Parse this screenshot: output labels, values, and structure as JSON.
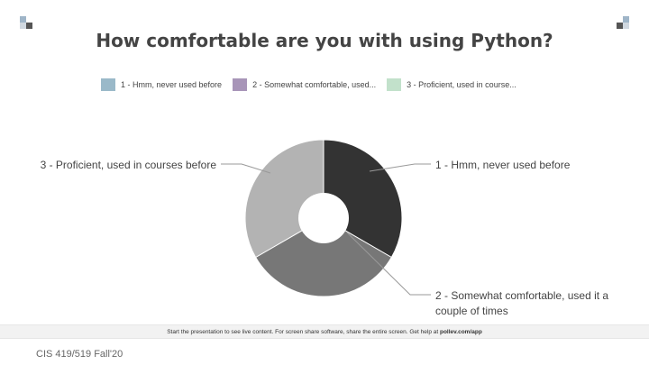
{
  "slide": {
    "title": "How comfortable are you with using Python?",
    "footer": "CIS 419/519 Fall'20"
  },
  "legend": [
    {
      "label": "1 - Hmm, never used before",
      "color": "#9ab9c9"
    },
    {
      "label": "2 - Somewhat comfortable, used...",
      "color": "#a895b8"
    },
    {
      "label": "3 - Proficient, used in course...",
      "color": "#c2e1cb"
    }
  ],
  "chart_data": {
    "type": "pie",
    "title": "How comfortable are you with using Python?",
    "donut": true,
    "slices": [
      {
        "label": "1 - Hmm, never used before",
        "value": 33.3,
        "color": "#333333"
      },
      {
        "label": "2 - Somewhat comfortable, used it a couple of times",
        "value": 33.3,
        "color": "#777777"
      },
      {
        "label": "3 - Proficient, used in courses before",
        "value": 33.3,
        "color": "#b3b3b3"
      }
    ],
    "labels": {
      "slice1": "1 - Hmm, never used before",
      "slice2_line1": "2 - Somewhat comfortable, used it a",
      "slice2_line2": "couple of times",
      "slice3": "3 - Proficient, used in courses before"
    },
    "legend_position": "top"
  },
  "bar": {
    "text": "Start the presentation to see live content. For screen share software, share the entire screen. Get help at",
    "link": "pollev.com/app"
  }
}
